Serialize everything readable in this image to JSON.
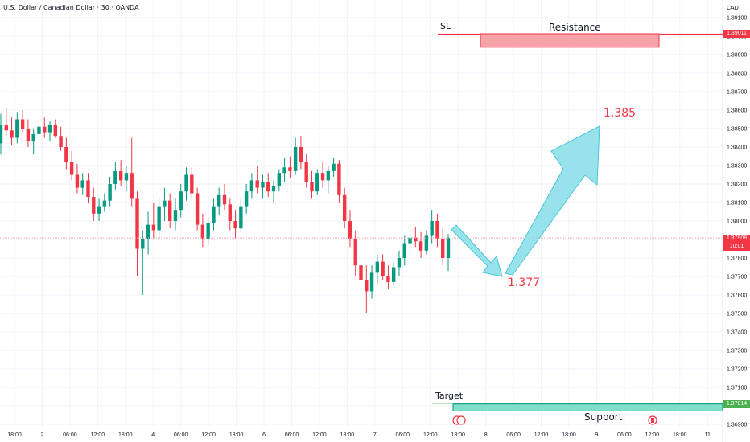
{
  "header": {
    "symbol": "U.S. Dollar / Canadian Dollar · 30 · OANDA",
    "currency": "CAD"
  },
  "colors": {
    "up": "#089981",
    "down": "#f23645",
    "projection_fill": "#8ddfe9",
    "projection_stroke": "#4bc6d7",
    "resistance_fill": "#f7a1a8",
    "support_fill": "#7fdfc9",
    "sl_line": "#f23645",
    "target_line": "#4caf50",
    "current_line": "#f5a3a9"
  },
  "annotations": {
    "sl": "SL",
    "resistance": "Resistance",
    "target": "Target",
    "support": "Support",
    "top_label": "1.385",
    "low_label": "1.377"
  },
  "price_tags": {
    "sl": "1.39011",
    "current_price": "1.37908",
    "countdown": "10:01",
    "target": "1.37014"
  },
  "chart_data": {
    "type": "candlestick",
    "title": "U.S. Dollar / Canadian Dollar · 30 · OANDA",
    "interval": "30",
    "y_axis": {
      "side": "right",
      "range": [
        1.3685,
        1.3914
      ],
      "ticks": [
        "1.39100",
        "1.39000",
        "1.38900",
        "1.38800",
        "1.38700",
        "1.38600",
        "1.38500",
        "1.38400",
        "1.38300",
        "1.38200",
        "1.38100",
        "1.38000",
        "1.37900",
        "1.37800",
        "1.37700",
        "1.37600",
        "1.37500",
        "1.37400",
        "1.37300",
        "1.37200",
        "1.37100",
        "1.37000",
        "1.36900"
      ]
    },
    "x_axis": {
      "ticks": [
        "18:00",
        "2",
        "06:00",
        "12:00",
        "18:00",
        "4",
        "06:00",
        "12:00",
        "18:00",
        "6",
        "06:00",
        "12:00",
        "18:00",
        "7",
        "06:00",
        "12:00",
        "18:00",
        "8",
        "06:00",
        "12:00",
        "18:00",
        "9",
        "06:00",
        "12:00",
        "18:00",
        "11"
      ]
    },
    "levels": {
      "sl": 1.39011,
      "resistance_zone": [
        1.3894,
        1.39
      ],
      "current": 1.37908,
      "target": 1.37014,
      "support_zone": [
        1.36985,
        1.3701
      ]
    },
    "projection": {
      "low": 1.377,
      "high": 1.385
    },
    "ohlc": [
      [
        1.3842,
        1.3858,
        1.3836,
        1.3852
      ],
      [
        1.3852,
        1.3861,
        1.3846,
        1.3849
      ],
      [
        1.3849,
        1.3856,
        1.3841,
        1.3845
      ],
      [
        1.3845,
        1.3859,
        1.3842,
        1.3855
      ],
      [
        1.3855,
        1.386,
        1.3848,
        1.385
      ],
      [
        1.385,
        1.3855,
        1.384,
        1.3843
      ],
      [
        1.3843,
        1.385,
        1.3836,
        1.3847
      ],
      [
        1.3847,
        1.3855,
        1.3843,
        1.3851
      ],
      [
        1.3851,
        1.3856,
        1.3845,
        1.3848
      ],
      [
        1.3848,
        1.3854,
        1.3843,
        1.3852
      ],
      [
        1.3852,
        1.3855,
        1.3845,
        1.3846
      ],
      [
        1.3846,
        1.3851,
        1.3838,
        1.384
      ],
      [
        1.384,
        1.3845,
        1.3828,
        1.3832
      ],
      [
        1.3832,
        1.3838,
        1.3822,
        1.3825
      ],
      [
        1.3825,
        1.3831,
        1.3815,
        1.3818
      ],
      [
        1.3818,
        1.3826,
        1.3814,
        1.3822
      ],
      [
        1.3822,
        1.3826,
        1.381,
        1.3813
      ],
      [
        1.3813,
        1.3818,
        1.38,
        1.3804
      ],
      [
        1.3804,
        1.3812,
        1.38,
        1.3808
      ],
      [
        1.3808,
        1.3815,
        1.3805,
        1.3811
      ],
      [
        1.3811,
        1.3824,
        1.3808,
        1.382
      ],
      [
        1.382,
        1.3832,
        1.3817,
        1.3827
      ],
      [
        1.3827,
        1.3833,
        1.3819,
        1.3822
      ],
      [
        1.3822,
        1.383,
        1.3816,
        1.3826
      ],
      [
        1.3826,
        1.3845,
        1.3808,
        1.3812
      ],
      [
        1.3812,
        1.3816,
        1.377,
        1.3785
      ],
      [
        1.3785,
        1.3795,
        1.376,
        1.379
      ],
      [
        1.379,
        1.3805,
        1.3782,
        1.3798
      ],
      [
        1.3798,
        1.381,
        1.379,
        1.3795
      ],
      [
        1.3795,
        1.3812,
        1.379,
        1.3808
      ],
      [
        1.3808,
        1.3818,
        1.38,
        1.3811
      ],
      [
        1.3811,
        1.3815,
        1.3796,
        1.38
      ],
      [
        1.38,
        1.3812,
        1.3795,
        1.3806
      ],
      [
        1.3806,
        1.382,
        1.3802,
        1.3816
      ],
      [
        1.3816,
        1.3829,
        1.3811,
        1.3825
      ],
      [
        1.3825,
        1.3829,
        1.3812,
        1.3815
      ],
      [
        1.3815,
        1.3818,
        1.3795,
        1.3798
      ],
      [
        1.3798,
        1.3804,
        1.3786,
        1.379
      ],
      [
        1.379,
        1.3802,
        1.3787,
        1.3799
      ],
      [
        1.3799,
        1.3812,
        1.3795,
        1.3808
      ],
      [
        1.3808,
        1.3818,
        1.3803,
        1.3814
      ],
      [
        1.3814,
        1.382,
        1.3806,
        1.3809
      ],
      [
        1.3809,
        1.3812,
        1.3795,
        1.38
      ],
      [
        1.38,
        1.3806,
        1.379,
        1.3796
      ],
      [
        1.3796,
        1.3812,
        1.3794,
        1.3808
      ],
      [
        1.3808,
        1.382,
        1.3804,
        1.3816
      ],
      [
        1.3816,
        1.3826,
        1.3812,
        1.3822
      ],
      [
        1.3822,
        1.383,
        1.3815,
        1.3818
      ],
      [
        1.3818,
        1.3825,
        1.3812,
        1.3821
      ],
      [
        1.3821,
        1.3826,
        1.3813,
        1.3816
      ],
      [
        1.3816,
        1.3822,
        1.381,
        1.3819
      ],
      [
        1.3819,
        1.3828,
        1.3816,
        1.3826
      ],
      [
        1.3826,
        1.3834,
        1.3821,
        1.3829
      ],
      [
        1.3829,
        1.3835,
        1.3823,
        1.3827
      ],
      [
        1.3827,
        1.3845,
        1.3825,
        1.384
      ],
      [
        1.384,
        1.3846,
        1.3828,
        1.3832
      ],
      [
        1.3832,
        1.3836,
        1.3818,
        1.3821
      ],
      [
        1.3821,
        1.3827,
        1.3812,
        1.3816
      ],
      [
        1.3816,
        1.3828,
        1.3814,
        1.3826
      ],
      [
        1.3826,
        1.3832,
        1.3818,
        1.3822
      ],
      [
        1.3822,
        1.383,
        1.3815,
        1.3827
      ],
      [
        1.3827,
        1.3834,
        1.3824,
        1.3831
      ],
      [
        1.3831,
        1.3833,
        1.381,
        1.3814
      ],
      [
        1.3814,
        1.3818,
        1.3796,
        1.38
      ],
      [
        1.38,
        1.3806,
        1.3786,
        1.379
      ],
      [
        1.379,
        1.3795,
        1.377,
        1.3776
      ],
      [
        1.3776,
        1.3786,
        1.3765,
        1.3768
      ],
      [
        1.3768,
        1.3776,
        1.375,
        1.3762
      ],
      [
        1.3762,
        1.3776,
        1.3758,
        1.3772
      ],
      [
        1.3772,
        1.3782,
        1.3766,
        1.3778
      ],
      [
        1.3778,
        1.3782,
        1.3768,
        1.377
      ],
      [
        1.377,
        1.3776,
        1.3763,
        1.3767
      ],
      [
        1.3767,
        1.3778,
        1.3765,
        1.3775
      ],
      [
        1.3775,
        1.3784,
        1.377,
        1.378
      ],
      [
        1.378,
        1.3792,
        1.3776,
        1.3788
      ],
      [
        1.3788,
        1.3796,
        1.3782,
        1.3791
      ],
      [
        1.3791,
        1.3797,
        1.3786,
        1.3789
      ],
      [
        1.3789,
        1.3794,
        1.378,
        1.3784
      ],
      [
        1.3784,
        1.3795,
        1.3782,
        1.3792
      ],
      [
        1.3792,
        1.3806,
        1.3788,
        1.38
      ],
      [
        1.38,
        1.3804,
        1.3786,
        1.379
      ],
      [
        1.379,
        1.3796,
        1.3776,
        1.378
      ],
      [
        1.378,
        1.3793,
        1.3773,
        1.3791
      ]
    ]
  }
}
